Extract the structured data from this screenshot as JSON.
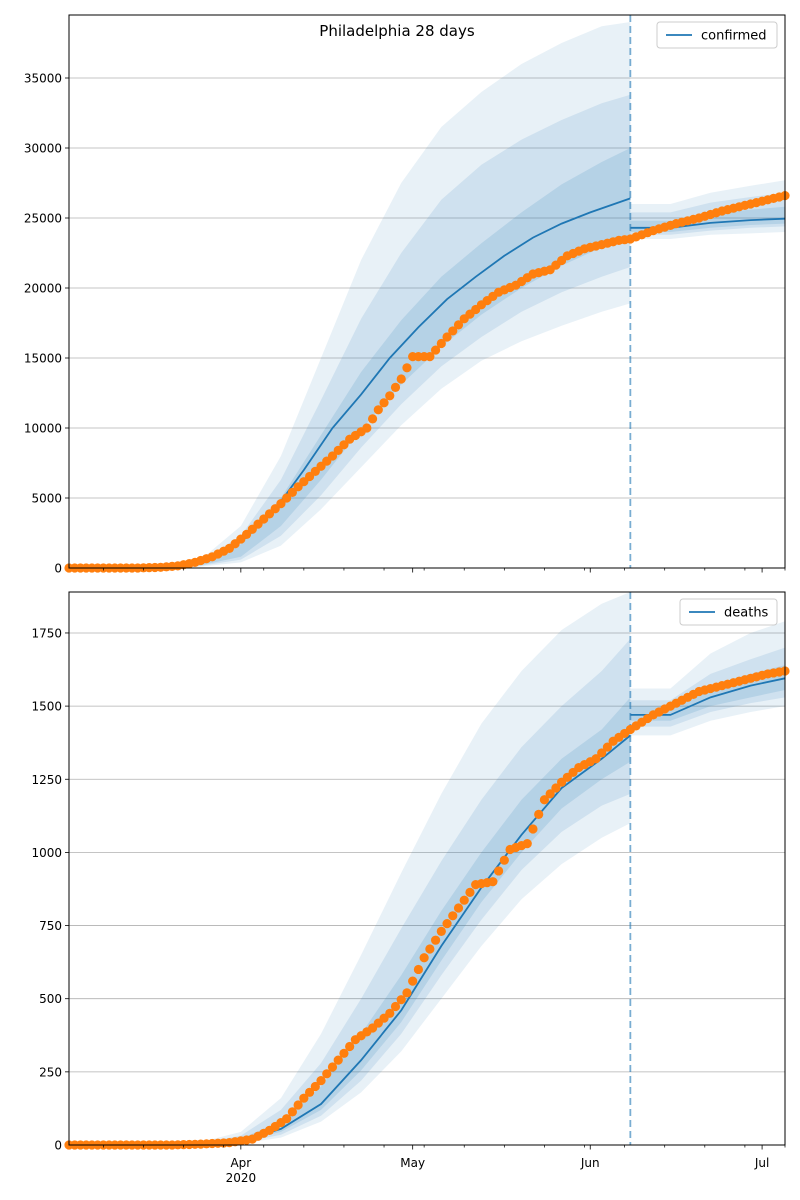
{
  "title": "Philadelphia 28 days",
  "colors": {
    "model": "#1f77b4",
    "observed": "#ff7f0e",
    "band": "#1f77b4",
    "grid": "#b0b0b0"
  },
  "x_axis": {
    "start": "2020-03-02",
    "end": "2020-07-05",
    "ticks": [
      {
        "date": "2020-04-01",
        "label": "Apr",
        "sublabel": "2020"
      },
      {
        "date": "2020-05-01",
        "label": "May",
        "sublabel": ""
      },
      {
        "date": "2020-06-01",
        "label": "Jun",
        "sublabel": ""
      },
      {
        "date": "2020-07-01",
        "label": "Jul",
        "sublabel": ""
      }
    ],
    "minor_ticks": [
      "2020-03-08",
      "2020-03-15",
      "2020-03-22",
      "2020-03-29",
      "2020-04-05",
      "2020-04-12",
      "2020-04-19",
      "2020-04-26",
      "2020-05-03",
      "2020-05-10",
      "2020-05-17",
      "2020-05-24",
      "2020-05-31",
      "2020-06-07",
      "2020-06-14",
      "2020-06-21",
      "2020-06-28",
      "2020-07-05"
    ]
  },
  "chart_data": [
    {
      "type": "line",
      "legend": "confirmed",
      "legend_position": "top-right",
      "grid": "horizontal",
      "ylim": [
        0,
        39500
      ],
      "yticks": [
        0,
        5000,
        10000,
        15000,
        20000,
        25000,
        30000,
        35000
      ],
      "forecast_start": "2020-06-08",
      "model_line": {
        "name": "confirmed",
        "dates": [
          "2020-03-02",
          "2020-03-15",
          "2020-03-22",
          "2020-03-28",
          "2020-04-02",
          "2020-04-07",
          "2020-04-12",
          "2020-04-17",
          "2020-04-22",
          "2020-04-27",
          "2020-05-02",
          "2020-05-07",
          "2020-05-12",
          "2020-05-17",
          "2020-05-22",
          "2020-05-27",
          "2020-06-01",
          "2020-06-08",
          "2020-06-15",
          "2020-06-22",
          "2020-06-29",
          "2020-07-05"
        ],
        "values": [
          0,
          30,
          200,
          900,
          2200,
          4200,
          7000,
          10000,
          12400,
          15000,
          17200,
          19200,
          20800,
          22300,
          23600,
          24600,
          25400,
          26400,
          24300,
          24650,
          24850,
          24950
        ]
      },
      "bands": [
        {
          "level": "outer",
          "dates": [
            "2020-03-02",
            "2020-03-18",
            "2020-03-25",
            "2020-04-01",
            "2020-04-08",
            "2020-04-15",
            "2020-04-22",
            "2020-04-29",
            "2020-05-06",
            "2020-05-13",
            "2020-05-20",
            "2020-05-27",
            "2020-06-03",
            "2020-06-08",
            "2020-06-15",
            "2020-06-22",
            "2020-06-29",
            "2020-07-05"
          ],
          "low": [
            0,
            0,
            100,
            400,
            1600,
            4200,
            7200,
            10200,
            12800,
            14800,
            16200,
            17300,
            18300,
            18900,
            23500,
            23800,
            23900,
            24000
          ],
          "high": [
            0,
            100,
            600,
            3000,
            8000,
            15000,
            22000,
            27500,
            31500,
            34000,
            36000,
            37500,
            38700,
            39000,
            26000,
            26800,
            27300,
            27700
          ]
        },
        {
          "level": "middle",
          "dates": [
            "2020-03-02",
            "2020-03-18",
            "2020-03-25",
            "2020-04-01",
            "2020-04-08",
            "2020-04-15",
            "2020-04-22",
            "2020-04-29",
            "2020-05-06",
            "2020-05-13",
            "2020-05-20",
            "2020-05-27",
            "2020-06-03",
            "2020-06-08",
            "2020-06-15",
            "2020-06-22",
            "2020-06-29",
            "2020-07-05"
          ],
          "low": [
            0,
            0,
            150,
            600,
            2300,
            5200,
            8600,
            11700,
            14400,
            16500,
            18300,
            19700,
            20800,
            21500,
            23800,
            24100,
            24300,
            24400
          ],
          "high": [
            0,
            80,
            450,
            2300,
            6300,
            12000,
            17800,
            22500,
            26300,
            28800,
            30600,
            32000,
            33200,
            33800,
            25400,
            26100,
            26500,
            26800
          ]
        },
        {
          "level": "inner",
          "dates": [
            "2020-03-02",
            "2020-03-18",
            "2020-03-25",
            "2020-04-01",
            "2020-04-08",
            "2020-04-15",
            "2020-04-22",
            "2020-04-29",
            "2020-05-06",
            "2020-05-13",
            "2020-05-20",
            "2020-05-27",
            "2020-06-03",
            "2020-06-08",
            "2020-06-15",
            "2020-06-22",
            "2020-06-29",
            "2020-07-05"
          ],
          "low": [
            0,
            0,
            200,
            800,
            3000,
            6300,
            9900,
            13100,
            15800,
            18100,
            20000,
            21600,
            22900,
            23700,
            24000,
            24300,
            24500,
            24600
          ],
          "high": [
            0,
            60,
            350,
            1700,
            5000,
            9500,
            14000,
            17700,
            20800,
            23200,
            25400,
            27400,
            29000,
            30000,
            24800,
            25300,
            25600,
            25800
          ]
        }
      ],
      "observed": {
        "name": "observed",
        "dates": [
          "2020-03-02",
          "2020-03-06",
          "2020-03-10",
          "2020-03-14",
          "2020-03-18",
          "2020-03-21",
          "2020-03-24",
          "2020-03-27",
          "2020-03-30",
          "2020-04-02",
          "2020-04-05",
          "2020-04-08",
          "2020-04-11",
          "2020-04-14",
          "2020-04-17",
          "2020-04-20",
          "2020-04-23",
          "2020-04-25",
          "2020-04-27",
          "2020-04-29",
          "2020-05-01",
          "2020-05-04",
          "2020-05-07",
          "2020-05-10",
          "2020-05-13",
          "2020-05-16",
          "2020-05-19",
          "2020-05-22",
          "2020-05-25",
          "2020-05-28",
          "2020-05-31",
          "2020-06-03",
          "2020-06-06",
          "2020-06-08",
          "2020-06-12",
          "2020-06-16",
          "2020-06-20",
          "2020-06-24",
          "2020-06-28",
          "2020-07-02",
          "2020-07-05"
        ],
        "values": [
          0,
          0,
          0,
          0,
          50,
          150,
          400,
          800,
          1400,
          2400,
          3500,
          4600,
          5800,
          6900,
          8000,
          9200,
          10000,
          11300,
          12300,
          13500,
          15100,
          15100,
          16500,
          17800,
          18800,
          19700,
          20200,
          21000,
          21300,
          22300,
          22800,
          23100,
          23400,
          23500,
          24100,
          24600,
          25000,
          25500,
          25900,
          26300,
          26600
        ]
      }
    },
    {
      "type": "line",
      "legend": "deaths",
      "legend_position": "top-right",
      "grid": "horizontal",
      "ylim": [
        0,
        1890
      ],
      "yticks": [
        0,
        250,
        500,
        750,
        1000,
        1250,
        1500,
        1750
      ],
      "forecast_start": "2020-06-08",
      "model_line": {
        "name": "deaths",
        "dates": [
          "2020-03-02",
          "2020-03-25",
          "2020-04-01",
          "2020-04-08",
          "2020-04-15",
          "2020-04-22",
          "2020-04-29",
          "2020-05-06",
          "2020-05-13",
          "2020-05-20",
          "2020-05-27",
          "2020-06-03",
          "2020-06-08",
          "2020-06-15",
          "2020-06-22",
          "2020-06-29",
          "2020-07-05"
        ],
        "values": [
          0,
          3,
          15,
          55,
          140,
          290,
          460,
          680,
          880,
          1060,
          1220,
          1320,
          1400,
          1470,
          1530,
          1570,
          1595
        ]
      },
      "bands": [
        {
          "level": "outer",
          "dates": [
            "2020-03-02",
            "2020-03-25",
            "2020-04-01",
            "2020-04-08",
            "2020-04-15",
            "2020-04-22",
            "2020-04-29",
            "2020-05-06",
            "2020-05-13",
            "2020-05-20",
            "2020-05-27",
            "2020-06-03",
            "2020-06-08",
            "2020-06-15",
            "2020-06-22",
            "2020-06-29",
            "2020-07-05"
          ],
          "low": [
            0,
            0,
            5,
            25,
            80,
            180,
            320,
            500,
            680,
            840,
            960,
            1050,
            1100,
            1400,
            1450,
            1480,
            1500
          ],
          "high": [
            0,
            10,
            45,
            160,
            380,
            650,
            930,
            1200,
            1440,
            1620,
            1760,
            1850,
            1890,
            1560,
            1680,
            1750,
            1790
          ]
        },
        {
          "level": "middle",
          "dates": [
            "2020-03-02",
            "2020-03-25",
            "2020-04-01",
            "2020-04-08",
            "2020-04-15",
            "2020-04-22",
            "2020-04-29",
            "2020-05-06",
            "2020-05-13",
            "2020-05-20",
            "2020-05-27",
            "2020-06-03",
            "2020-06-08",
            "2020-06-15",
            "2020-06-22",
            "2020-06-29",
            "2020-07-05"
          ],
          "low": [
            0,
            1,
            8,
            35,
            100,
            220,
            380,
            580,
            770,
            940,
            1070,
            1160,
            1200,
            1430,
            1480,
            1510,
            1530
          ],
          "high": [
            0,
            7,
            32,
            120,
            280,
            500,
            740,
            970,
            1180,
            1360,
            1500,
            1620,
            1730,
            1520,
            1610,
            1660,
            1700
          ]
        },
        {
          "level": "inner",
          "dates": [
            "2020-03-02",
            "2020-03-25",
            "2020-04-01",
            "2020-04-08",
            "2020-04-15",
            "2020-04-22",
            "2020-04-29",
            "2020-05-06",
            "2020-05-13",
            "2020-05-20",
            "2020-05-27",
            "2020-06-03",
            "2020-06-08",
            "2020-06-15",
            "2020-06-22",
            "2020-06-29",
            "2020-07-05"
          ],
          "low": [
            0,
            2,
            11,
            45,
            120,
            255,
            420,
            630,
            830,
            1000,
            1150,
            1250,
            1310,
            1450,
            1500,
            1530,
            1555
          ],
          "high": [
            0,
            5,
            22,
            80,
            200,
            380,
            580,
            800,
            1000,
            1180,
            1320,
            1420,
            1530,
            1500,
            1570,
            1610,
            1640
          ]
        }
      ],
      "observed": {
        "name": "observed",
        "dates": [
          "2020-03-02",
          "2020-03-10",
          "2020-03-20",
          "2020-03-25",
          "2020-03-30",
          "2020-04-03",
          "2020-04-06",
          "2020-04-09",
          "2020-04-12",
          "2020-04-15",
          "2020-04-18",
          "2020-04-21",
          "2020-04-24",
          "2020-04-27",
          "2020-04-30",
          "2020-05-03",
          "2020-05-06",
          "2020-05-09",
          "2020-05-12",
          "2020-05-15",
          "2020-05-18",
          "2020-05-21",
          "2020-05-24",
          "2020-05-27",
          "2020-05-30",
          "2020-06-02",
          "2020-06-05",
          "2020-06-08",
          "2020-06-12",
          "2020-06-16",
          "2020-06-20",
          "2020-06-24",
          "2020-06-28",
          "2020-07-02",
          "2020-07-05"
        ],
        "values": [
          0,
          0,
          0,
          3,
          8,
          20,
          50,
          90,
          160,
          220,
          290,
          360,
          400,
          450,
          520,
          640,
          730,
          810,
          890,
          900,
          1010,
          1030,
          1180,
          1240,
          1290,
          1320,
          1380,
          1420,
          1470,
          1510,
          1550,
          1570,
          1590,
          1610,
          1620
        ]
      }
    }
  ]
}
